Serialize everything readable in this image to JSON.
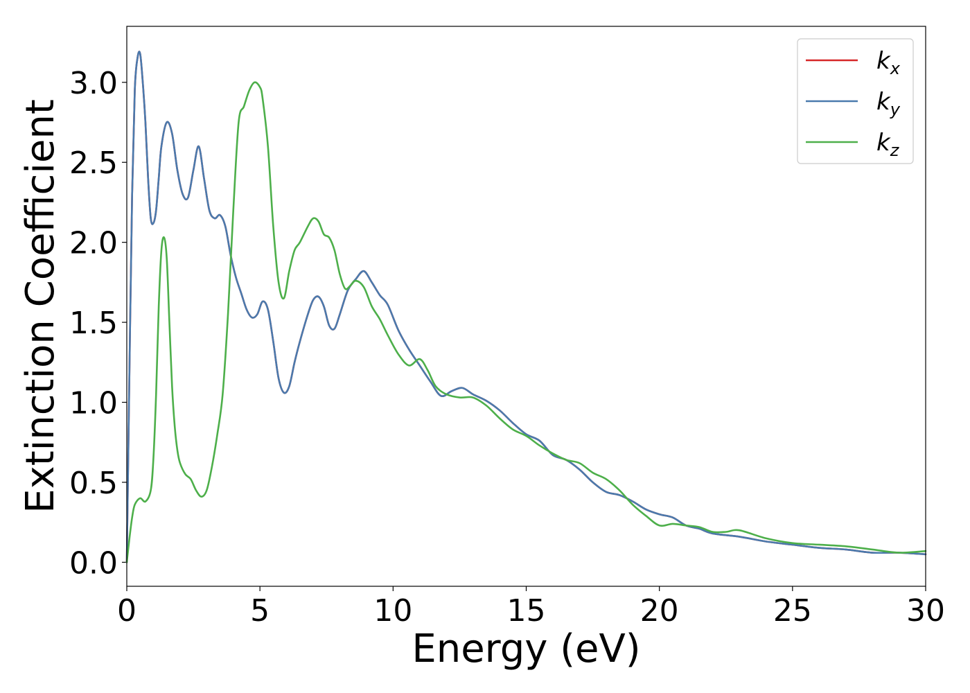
{
  "chart_data": {
    "type": "line",
    "xlabel": "Energy (eV)",
    "ylabel": "Extinction Coefficient",
    "xlim": [
      0,
      30
    ],
    "ylim": [
      -0.15,
      3.35
    ],
    "xticks": [
      0,
      5,
      10,
      15,
      20,
      25,
      30
    ],
    "xtick_labels": [
      "0",
      "5",
      "10",
      "15",
      "20",
      "25",
      "30"
    ],
    "yticks": [
      0.0,
      0.5,
      1.0,
      1.5,
      2.0,
      2.5,
      3.0
    ],
    "ytick_labels": [
      "0.0",
      "0.5",
      "1.0",
      "1.5",
      "2.0",
      "2.5",
      "3.0"
    ],
    "grid": false,
    "legend_position": "top-right",
    "series": [
      {
        "name": "k_x",
        "label_main": "k",
        "label_sub": "x",
        "color": "#d62728",
        "x": [
          0,
          0.1,
          0.2,
          0.3,
          0.4,
          0.5,
          0.6,
          0.7,
          0.8,
          0.9,
          1.0,
          1.1,
          1.2,
          1.3,
          1.5,
          1.7,
          1.9,
          2.1,
          2.3,
          2.5,
          2.7,
          2.9,
          3.1,
          3.3,
          3.5,
          3.7,
          3.9,
          4.1,
          4.3,
          4.5,
          4.7,
          4.9,
          5.1,
          5.3,
          5.5,
          5.7,
          5.9,
          6.1,
          6.3,
          6.5,
          6.8,
          7.0,
          7.2,
          7.4,
          7.6,
          7.8,
          8.0,
          8.3,
          8.6,
          8.9,
          9.2,
          9.5,
          9.8,
          10.2,
          10.6,
          11.0,
          11.4,
          11.8,
          12.2,
          12.6,
          13.0,
          13.5,
          14.0,
          14.5,
          15.0,
          15.5,
          16.0,
          16.5,
          17.0,
          17.5,
          18.0,
          18.5,
          19.0,
          19.5,
          20.0,
          20.5,
          21.0,
          21.5,
          22.0,
          23.0,
          24.0,
          25.0,
          26.0,
          27.0,
          28.0,
          29.0,
          30.0
        ],
        "y": [
          0.0,
          1.2,
          2.3,
          2.95,
          3.15,
          3.18,
          3.0,
          2.75,
          2.4,
          2.15,
          2.12,
          2.2,
          2.4,
          2.6,
          2.75,
          2.68,
          2.45,
          2.3,
          2.28,
          2.45,
          2.6,
          2.4,
          2.2,
          2.15,
          2.17,
          2.1,
          1.92,
          1.78,
          1.68,
          1.58,
          1.53,
          1.55,
          1.63,
          1.58,
          1.38,
          1.15,
          1.06,
          1.1,
          1.25,
          1.38,
          1.55,
          1.64,
          1.66,
          1.6,
          1.48,
          1.46,
          1.55,
          1.7,
          1.77,
          1.82,
          1.75,
          1.67,
          1.61,
          1.45,
          1.33,
          1.23,
          1.13,
          1.04,
          1.07,
          1.09,
          1.05,
          1.01,
          0.95,
          0.87,
          0.8,
          0.76,
          0.67,
          0.64,
          0.58,
          0.5,
          0.44,
          0.42,
          0.38,
          0.33,
          0.3,
          0.28,
          0.23,
          0.21,
          0.18,
          0.16,
          0.13,
          0.11,
          0.09,
          0.08,
          0.06,
          0.06,
          0.05
        ]
      },
      {
        "name": "k_y",
        "label_main": "k",
        "label_sub": "y",
        "color": "#4a7aad",
        "x": [
          0,
          0.1,
          0.2,
          0.3,
          0.4,
          0.5,
          0.6,
          0.7,
          0.8,
          0.9,
          1.0,
          1.1,
          1.2,
          1.3,
          1.5,
          1.7,
          1.9,
          2.1,
          2.3,
          2.5,
          2.7,
          2.9,
          3.1,
          3.3,
          3.5,
          3.7,
          3.9,
          4.1,
          4.3,
          4.5,
          4.7,
          4.9,
          5.1,
          5.3,
          5.5,
          5.7,
          5.9,
          6.1,
          6.3,
          6.5,
          6.8,
          7.0,
          7.2,
          7.4,
          7.6,
          7.8,
          8.0,
          8.3,
          8.6,
          8.9,
          9.2,
          9.5,
          9.8,
          10.2,
          10.6,
          11.0,
          11.4,
          11.8,
          12.2,
          12.6,
          13.0,
          13.5,
          14.0,
          14.5,
          15.0,
          15.5,
          16.0,
          16.5,
          17.0,
          17.5,
          18.0,
          18.5,
          19.0,
          19.5,
          20.0,
          20.5,
          21.0,
          21.5,
          22.0,
          23.0,
          24.0,
          25.0,
          26.0,
          27.0,
          28.0,
          29.0,
          30.0
        ],
        "y": [
          0.0,
          1.2,
          2.3,
          2.95,
          3.15,
          3.18,
          3.0,
          2.75,
          2.4,
          2.15,
          2.12,
          2.2,
          2.4,
          2.6,
          2.75,
          2.68,
          2.45,
          2.3,
          2.28,
          2.45,
          2.6,
          2.4,
          2.2,
          2.15,
          2.17,
          2.1,
          1.92,
          1.78,
          1.68,
          1.58,
          1.53,
          1.55,
          1.63,
          1.58,
          1.38,
          1.15,
          1.06,
          1.1,
          1.25,
          1.38,
          1.55,
          1.64,
          1.66,
          1.6,
          1.48,
          1.46,
          1.55,
          1.7,
          1.77,
          1.82,
          1.75,
          1.67,
          1.61,
          1.45,
          1.33,
          1.23,
          1.13,
          1.04,
          1.07,
          1.09,
          1.05,
          1.01,
          0.95,
          0.87,
          0.8,
          0.76,
          0.67,
          0.64,
          0.58,
          0.5,
          0.44,
          0.42,
          0.38,
          0.33,
          0.3,
          0.28,
          0.23,
          0.21,
          0.18,
          0.16,
          0.13,
          0.11,
          0.09,
          0.08,
          0.06,
          0.06,
          0.05
        ]
      },
      {
        "name": "k_z",
        "label_main": "k",
        "label_sub": "z",
        "color": "#4daf4a",
        "x": [
          0,
          0.1,
          0.2,
          0.3,
          0.5,
          0.7,
          0.9,
          1.0,
          1.1,
          1.2,
          1.3,
          1.4,
          1.5,
          1.6,
          1.7,
          1.8,
          1.9,
          2.0,
          2.2,
          2.4,
          2.6,
          2.8,
          3.0,
          3.2,
          3.4,
          3.6,
          3.8,
          4.0,
          4.2,
          4.4,
          4.6,
          4.8,
          5.0,
          5.1,
          5.3,
          5.5,
          5.7,
          5.9,
          6.1,
          6.3,
          6.5,
          6.8,
          7.0,
          7.2,
          7.4,
          7.6,
          7.8,
          8.0,
          8.2,
          8.4,
          8.6,
          8.9,
          9.2,
          9.5,
          9.8,
          10.2,
          10.6,
          11.0,
          11.3,
          11.6,
          12.0,
          12.5,
          13.0,
          13.5,
          14.0,
          14.5,
          15.0,
          15.5,
          16.0,
          16.5,
          17.0,
          17.5,
          18.0,
          18.5,
          19.0,
          19.5,
          20.0,
          20.5,
          21.0,
          21.5,
          22.0,
          22.5,
          23.0,
          24.0,
          25.0,
          26.0,
          27.0,
          28.0,
          29.0,
          30.0
        ],
        "y": [
          0.0,
          0.15,
          0.28,
          0.36,
          0.4,
          0.38,
          0.45,
          0.65,
          1.05,
          1.6,
          1.95,
          2.03,
          1.9,
          1.5,
          1.1,
          0.85,
          0.7,
          0.62,
          0.55,
          0.52,
          0.45,
          0.41,
          0.45,
          0.6,
          0.8,
          1.05,
          1.55,
          2.2,
          2.75,
          2.85,
          2.95,
          3.0,
          2.97,
          2.9,
          2.6,
          2.1,
          1.75,
          1.65,
          1.82,
          1.95,
          2.0,
          2.1,
          2.15,
          2.13,
          2.05,
          2.03,
          1.95,
          1.8,
          1.71,
          1.73,
          1.76,
          1.72,
          1.6,
          1.52,
          1.42,
          1.3,
          1.23,
          1.27,
          1.2,
          1.1,
          1.05,
          1.03,
          1.03,
          0.98,
          0.9,
          0.83,
          0.79,
          0.73,
          0.68,
          0.64,
          0.62,
          0.56,
          0.52,
          0.45,
          0.36,
          0.29,
          0.23,
          0.24,
          0.23,
          0.22,
          0.19,
          0.19,
          0.2,
          0.15,
          0.12,
          0.11,
          0.1,
          0.08,
          0.06,
          0.07
        ]
      }
    ]
  }
}
